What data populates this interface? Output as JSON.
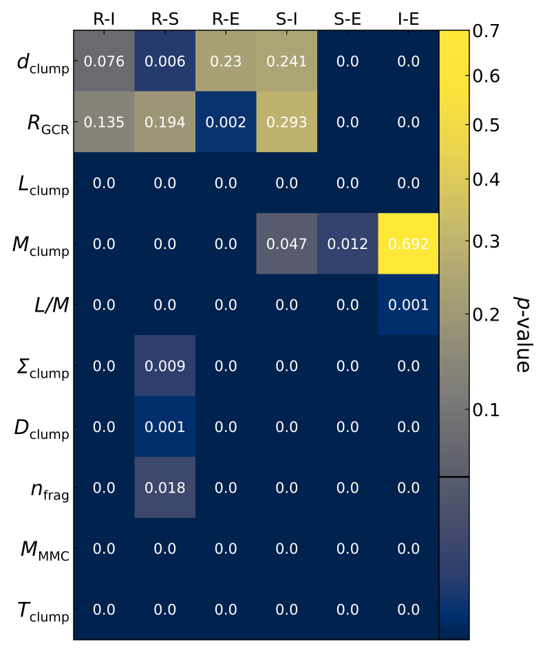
{
  "chart_data": {
    "type": "heatmap",
    "title": "",
    "columns": [
      "R-I",
      "R-S",
      "R-E",
      "S-I",
      "S-E",
      "I-E"
    ],
    "rows": [
      {
        "name": "d",
        "sub": "clump"
      },
      {
        "name": "R",
        "sub": "GCR"
      },
      {
        "name": "L",
        "sub": "clump"
      },
      {
        "name": "M",
        "sub": "clump"
      },
      {
        "name": "L/M",
        "sub": ""
      },
      {
        "name": "Σ",
        "sub": "clump"
      },
      {
        "name": "D",
        "sub": "clump"
      },
      {
        "name": "n",
        "sub": "frag"
      },
      {
        "name": "M",
        "sub": "MMC"
      },
      {
        "name": "T",
        "sub": "clump"
      }
    ],
    "values": [
      [
        0.076,
        0.006,
        0.23,
        0.241,
        0.0,
        0.0
      ],
      [
        0.135,
        0.194,
        0.002,
        0.293,
        0.0,
        0.0
      ],
      [
        0.0,
        0.0,
        0.0,
        0.0,
        0.0,
        0.0
      ],
      [
        0.0,
        0.0,
        0.0,
        0.047,
        0.012,
        0.692
      ],
      [
        0.0,
        0.0,
        0.0,
        0.0,
        0.0,
        0.001
      ],
      [
        0.0,
        0.009,
        0.0,
        0.0,
        0.0,
        0.0
      ],
      [
        0.0,
        0.001,
        0.0,
        0.0,
        0.0,
        0.0
      ],
      [
        0.0,
        0.018,
        0.0,
        0.0,
        0.0,
        0.0
      ],
      [
        0.0,
        0.0,
        0.0,
        0.0,
        0.0,
        0.0
      ],
      [
        0.0,
        0.0,
        0.0,
        0.0,
        0.0,
        0.0
      ]
    ],
    "value_labels": [
      [
        "0.076",
        "0.006",
        "0.23",
        "0.241",
        "0.0",
        "0.0"
      ],
      [
        "0.135",
        "0.194",
        "0.002",
        "0.293",
        "0.0",
        "0.0"
      ],
      [
        "0.0",
        "0.0",
        "0.0",
        "0.0",
        "0.0",
        "0.0"
      ],
      [
        "0.0",
        "0.0",
        "0.0",
        "0.047",
        "0.012",
        "0.692"
      ],
      [
        "0.0",
        "0.0",
        "0.0",
        "0.0",
        "0.0",
        "0.001"
      ],
      [
        "0.0",
        "0.009",
        "0.0",
        "0.0",
        "0.0",
        "0.0"
      ],
      [
        "0.0",
        "0.001",
        "0.0",
        "0.0",
        "0.0",
        "0.0"
      ],
      [
        "0.0",
        "0.018",
        "0.0",
        "0.0",
        "0.0",
        "0.0"
      ],
      [
        "0.0",
        "0.0",
        "0.0",
        "0.0",
        "0.0",
        "0.0"
      ],
      [
        "0.0",
        "0.0",
        "0.0",
        "0.0",
        "0.0",
        "0.0"
      ]
    ],
    "colorbar": {
      "label": "p-value",
      "label_italic_part": "p",
      "label_rest": "-value",
      "range": [
        0.0,
        0.7
      ],
      "ticks": [
        0.1,
        0.2,
        0.3,
        0.4,
        0.5,
        0.6,
        0.7
      ],
      "tick_labels": [
        "0.1",
        "0.2",
        "0.3",
        "0.4",
        "0.5",
        "0.6",
        "0.7"
      ],
      "marker_line_value": 0.05,
      "colormap": "cividis"
    },
    "colors": {
      "cmap_low": "#00224e",
      "cmap_mid": "#7c7b78",
      "cmap_high": "#fee838",
      "cell_text": "#ffffff",
      "axis": "#000000"
    }
  }
}
